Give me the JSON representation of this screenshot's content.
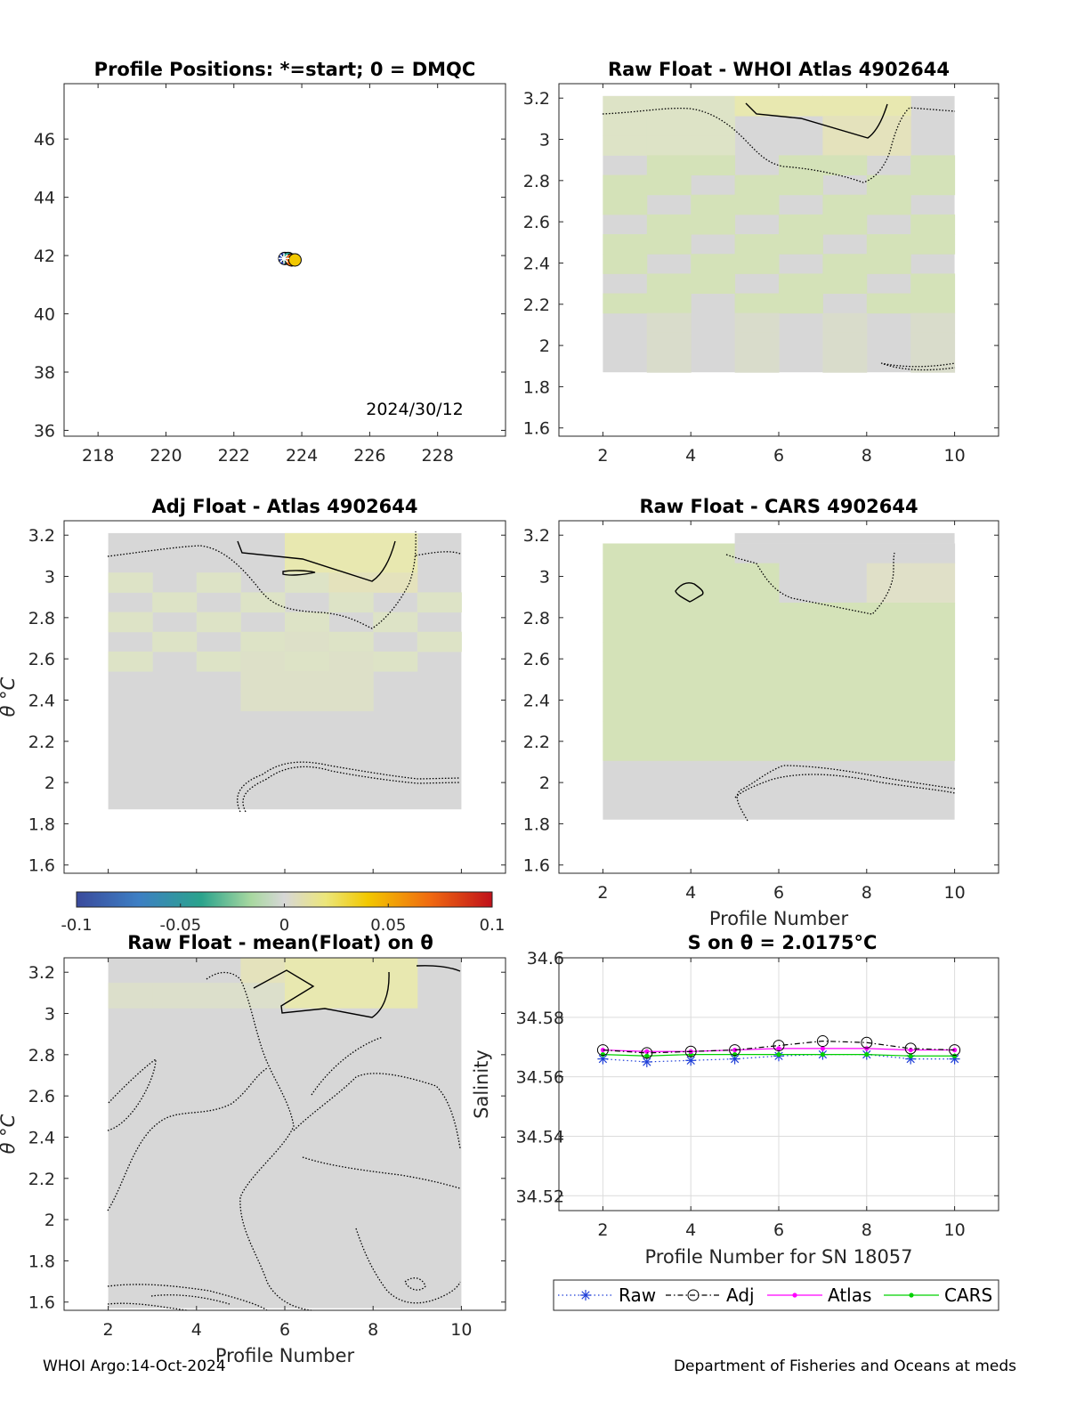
{
  "footer": {
    "left": "WHOI Argo:14-Oct-2024",
    "right": "Department of Fisheries and Oceans at meds"
  },
  "colors": {
    "raw": "#1f3fd8",
    "adj": "#000000",
    "atlas": "#ff00ff",
    "cars": "#00d000",
    "grid": "#dcdcdc",
    "field_neutral": "#d7d7d7",
    "field_warm": "#e8e8b0",
    "field_cool": "#d4e2b8"
  },
  "chart_data": [
    {
      "id": "positions",
      "type": "scatter",
      "title": "Profile Positions: *=start; 0 = DMQC",
      "xlim": [
        217,
        230
      ],
      "ylim": [
        35.8,
        47.9
      ],
      "xticks": [
        218,
        220,
        222,
        224,
        226,
        228
      ],
      "yticks": [
        36,
        38,
        40,
        42,
        44,
        46
      ],
      "annotation": "2024/30/12",
      "points": [
        {
          "x": 223.5,
          "y": 41.9
        },
        {
          "x": 223.6,
          "y": 41.9
        },
        {
          "x": 223.7,
          "y": 41.85
        },
        {
          "x": 223.8,
          "y": 41.85
        }
      ],
      "start_marker": "*"
    },
    {
      "id": "raw-whoi",
      "type": "heatmap",
      "title": "Raw Float - WHOI Atlas  4902644",
      "xlim": [
        1,
        11
      ],
      "ylim": [
        1.56,
        3.27
      ],
      "xticks": [
        2,
        4,
        6,
        8,
        10
      ],
      "yticks": [
        1.6,
        1.8,
        2,
        2.2,
        2.4,
        2.6,
        2.8,
        3,
        3.2
      ],
      "field_x": [
        2,
        10
      ],
      "field_y": [
        1.87,
        3.21
      ]
    },
    {
      "id": "adj-atlas",
      "type": "heatmap",
      "title": "Adj Float - Atlas  4902644",
      "ylabel": "θ °C",
      "xlim": [
        1,
        11
      ],
      "ylim": [
        1.56,
        3.27
      ],
      "yticks": [
        1.6,
        1.8,
        2,
        2.2,
        2.4,
        2.6,
        2.8,
        3,
        3.2
      ],
      "field_x": [
        2,
        10
      ],
      "field_y": [
        1.87,
        3.21
      ]
    },
    {
      "id": "raw-cars",
      "type": "heatmap",
      "title": "Raw Float - CARS  4902644",
      "xlabel": "Profile Number",
      "xlim": [
        1,
        11
      ],
      "ylim": [
        1.56,
        3.27
      ],
      "xticks": [
        2,
        4,
        6,
        8,
        10
      ],
      "yticks": [
        1.6,
        1.8,
        2,
        2.2,
        2.4,
        2.6,
        2.8,
        3,
        3.2
      ],
      "field_x": [
        2,
        10
      ],
      "field_y": [
        1.82,
        3.16
      ]
    },
    {
      "id": "colorbar",
      "type": "heatmap",
      "range": [
        -0.1,
        0.1
      ],
      "ticks": [
        "-0.1",
        "-0.05",
        "0",
        "0.05",
        "0.1"
      ]
    },
    {
      "id": "raw-mean",
      "type": "heatmap",
      "title": "Raw Float - mean(Float) on θ",
      "ylabel": "θ °C",
      "xlabel": "Profile Number",
      "xlim": [
        1,
        11
      ],
      "ylim": [
        1.56,
        3.27
      ],
      "xticks": [
        2,
        4,
        6,
        8,
        10
      ],
      "yticks": [
        1.6,
        1.8,
        2,
        2.2,
        2.4,
        2.6,
        2.8,
        3,
        3.2
      ],
      "field_x": [
        2,
        10
      ],
      "field_y": [
        1.57,
        3.27
      ]
    },
    {
      "id": "s-on-theta",
      "type": "line",
      "title": "S on θ = 2.0175°C",
      "xlabel": "Profile Number for SN 18057",
      "ylabel": "Salinity",
      "xlim": [
        1,
        11
      ],
      "ylim": [
        34.515,
        34.6
      ],
      "xticks": [
        2,
        4,
        6,
        8,
        10
      ],
      "yticks": [
        34.52,
        34.54,
        34.56,
        34.58,
        34.6
      ],
      "ytick_labels": [
        "34.52",
        "34.54",
        "34.56",
        "34.58",
        "34.6"
      ],
      "grid": true,
      "legend_position": "bottom",
      "x": [
        2,
        3,
        4,
        5,
        6,
        7,
        8,
        9,
        10
      ],
      "series": [
        {
          "name": "Raw",
          "values": [
            34.566,
            34.565,
            34.5655,
            34.566,
            34.567,
            34.5675,
            34.5675,
            34.566,
            34.566
          ]
        },
        {
          "name": "Adj",
          "values": [
            34.569,
            34.568,
            34.5685,
            34.569,
            34.5705,
            34.572,
            34.5715,
            34.5695,
            34.569
          ]
        },
        {
          "name": "Atlas",
          "values": [
            34.569,
            34.5685,
            34.5685,
            34.569,
            34.5695,
            34.5695,
            34.5695,
            34.569,
            34.569
          ]
        },
        {
          "name": "CARS",
          "values": [
            34.5675,
            34.567,
            34.5675,
            34.5675,
            34.5675,
            34.5675,
            34.5675,
            34.567,
            34.567
          ]
        }
      ]
    }
  ]
}
